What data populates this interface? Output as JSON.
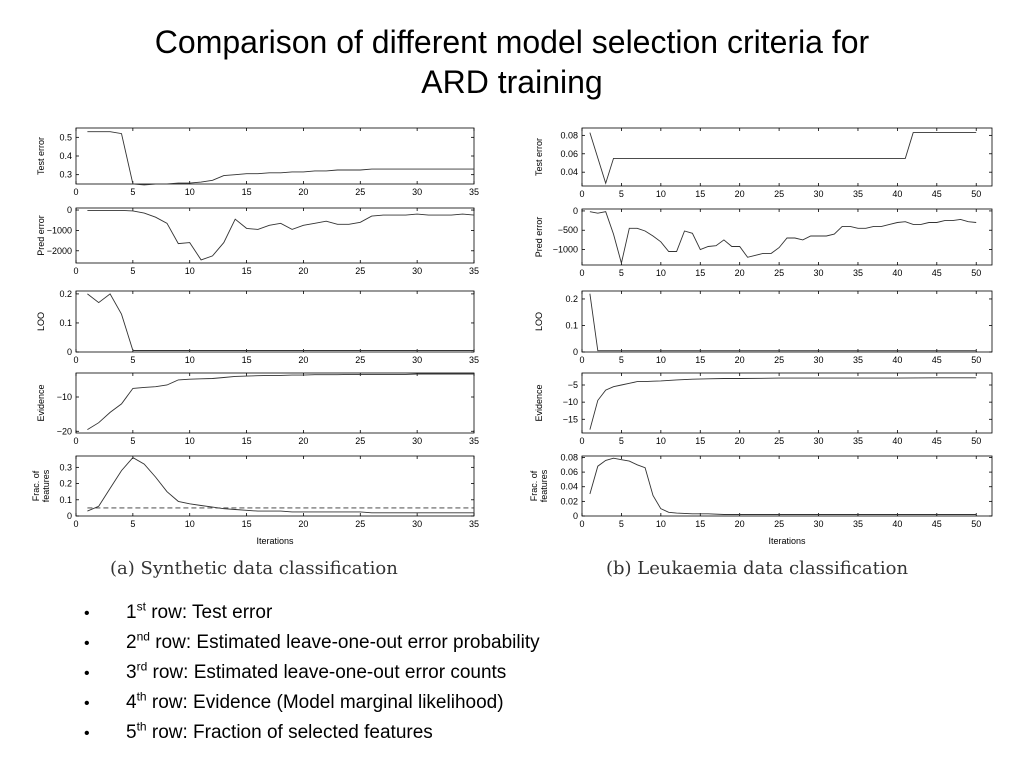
{
  "title": {
    "line1": "Comparison of different model selection criteria for",
    "line2": "ARD training"
  },
  "captions": {
    "a": "(a) Synthetic data classification",
    "b": "(b) Leukaemia data classification"
  },
  "bullets": [
    {
      "marker": "•",
      "num": "1",
      "sup": "st",
      "text": "row: Test error"
    },
    {
      "marker": "•",
      "num": "2",
      "sup": "nd",
      "text": "row: Estimated leave-one-out error probability"
    },
    {
      "marker": "•",
      "num": "3",
      "sup": "rd",
      "text": "row: Estimated leave-one-out error counts"
    },
    {
      "marker": "•",
      "num": "4",
      "sup": "th",
      "text": "row: Evidence (Model marginal likelihood)"
    },
    {
      "marker": "•",
      "num": "5",
      "sup": "th",
      "text": "row: Fraction of selected features"
    }
  ],
  "colors": {
    "line": "#333333",
    "axis": "#000000"
  },
  "chart_data": [
    {
      "type": "line",
      "panel": "a",
      "xlabel": "Iterations",
      "xlim": [
        0,
        35
      ],
      "xticks": [
        0,
        5,
        10,
        15,
        20,
        25,
        30,
        35
      ],
      "subplots": [
        {
          "ylabel": "Test error",
          "ylim": [
            0.25,
            0.55
          ],
          "yticks": [
            0.3,
            0.4,
            0.5
          ],
          "yticklabels": [
            "0.3",
            "0.4",
            "0.5"
          ],
          "series": [
            {
              "x": [
                1,
                2,
                3,
                4,
                5,
                6,
                7,
                8,
                9,
                10,
                11,
                12,
                13,
                14,
                15,
                16,
                17,
                18,
                19,
                20,
                21,
                22,
                23,
                24,
                25,
                26,
                27,
                28,
                29,
                30,
                31,
                32,
                33,
                34,
                35
              ],
              "y": [
                0.53,
                0.53,
                0.53,
                0.52,
                0.25,
                0.245,
                0.25,
                0.25,
                0.255,
                0.255,
                0.26,
                0.27,
                0.295,
                0.3,
                0.305,
                0.305,
                0.31,
                0.31,
                0.315,
                0.315,
                0.32,
                0.32,
                0.325,
                0.325,
                0.325,
                0.33,
                0.33,
                0.33,
                0.33,
                0.33,
                0.33,
                0.33,
                0.33,
                0.33,
                0.33
              ]
            }
          ]
        },
        {
          "ylabel": "Pred error",
          "ylim": [
            -2600,
            100
          ],
          "yticks": [
            0,
            -1000,
            -2000
          ],
          "yticklabels": [
            "0",
            "−1000",
            "−2000"
          ],
          "series": [
            {
              "x": [
                1,
                2,
                3,
                4,
                5,
                6,
                7,
                8,
                9,
                10,
                11,
                12,
                13,
                14,
                15,
                16,
                17,
                18,
                19,
                20,
                21,
                22,
                23,
                24,
                25,
                26,
                27,
                28,
                29,
                30,
                31,
                32,
                33,
                34,
                35
              ],
              "y": [
                -20,
                -20,
                -20,
                -20,
                -40,
                -150,
                -350,
                -650,
                -1650,
                -1600,
                -2450,
                -2250,
                -1600,
                -450,
                -900,
                -950,
                -750,
                -650,
                -950,
                -750,
                -650,
                -550,
                -700,
                -700,
                -600,
                -300,
                -250,
                -250,
                -250,
                -200,
                -250,
                -250,
                -250,
                -200,
                -250
              ]
            }
          ]
        },
        {
          "ylabel": "LOO",
          "ylim": [
            0,
            0.21
          ],
          "yticks": [
            0,
            0.1,
            0.2
          ],
          "yticklabels": [
            "0",
            "0.1",
            "0.2"
          ],
          "series": [
            {
              "x": [
                1,
                2,
                3,
                4,
                5,
                6,
                10,
                15,
                20,
                25,
                30,
                35
              ],
              "y": [
                0.2,
                0.17,
                0.2,
                0.13,
                0.005,
                0.005,
                0.005,
                0.005,
                0.005,
                0.005,
                0.005,
                0.005
              ]
            }
          ]
        },
        {
          "ylabel": "Evidence",
          "ylim": [
            -20.5,
            -3
          ],
          "yticks": [
            -10,
            -20
          ],
          "yticklabels": [
            "−10",
            "−20"
          ],
          "series": [
            {
              "x": [
                1,
                2,
                3,
                4,
                5,
                6,
                7,
                8,
                9,
                10,
                11,
                12,
                13,
                14,
                15,
                16,
                17,
                18,
                19,
                20,
                21,
                22,
                23,
                24,
                25,
                26,
                27,
                28,
                29,
                30,
                31,
                32,
                33,
                34,
                35
              ],
              "y": [
                -19.5,
                -17.5,
                -14.5,
                -12,
                -7.5,
                -7.2,
                -7,
                -6.5,
                -5,
                -4.8,
                -4.7,
                -4.6,
                -4.3,
                -4,
                -3.9,
                -3.8,
                -3.7,
                -3.7,
                -3.6,
                -3.6,
                -3.5,
                -3.5,
                -3.5,
                -3.4,
                -3.4,
                -3.4,
                -3.4,
                -3.4,
                -3.4,
                -3.3,
                -3.3,
                -3.3,
                -3.3,
                -3.3,
                -3.3
              ]
            }
          ]
        },
        {
          "ylabel": "Frac. of\nfeatures",
          "ylim": [
            0,
            0.37
          ],
          "yticks": [
            0,
            0.1,
            0.2,
            0.3
          ],
          "yticklabels": [
            "0",
            "0.1",
            "0.2",
            "0.3"
          ],
          "series": [
            {
              "x": [
                1,
                2,
                3,
                4,
                5,
                6,
                7,
                8,
                9,
                10,
                11,
                12,
                13,
                14,
                15,
                16,
                17,
                18,
                19,
                20,
                21,
                22,
                23,
                24,
                25,
                26,
                27,
                28,
                29,
                30,
                31,
                32,
                33,
                34,
                35
              ],
              "y": [
                0.03,
                0.06,
                0.17,
                0.28,
                0.36,
                0.32,
                0.24,
                0.15,
                0.09,
                0.075,
                0.065,
                0.055,
                0.045,
                0.04,
                0.035,
                0.03,
                0.03,
                0.03,
                0.025,
                0.025,
                0.025,
                0.025,
                0.025,
                0.025,
                0.025,
                0.02,
                0.02,
                0.02,
                0.02,
                0.02,
                0.02,
                0.02,
                0.02,
                0.02,
                0.02
              ]
            },
            {
              "x": [
                1,
                35
              ],
              "y": [
                0.05,
                0.05
              ],
              "dashed": true
            }
          ]
        }
      ]
    },
    {
      "type": "line",
      "panel": "b",
      "xlabel": "Iterations",
      "xlim": [
        0,
        52
      ],
      "xticks": [
        0,
        5,
        10,
        15,
        20,
        25,
        30,
        35,
        40,
        45,
        50
      ],
      "subplots": [
        {
          "ylabel": "Test error",
          "ylim": [
            0.025,
            0.088
          ],
          "yticks": [
            0.04,
            0.06,
            0.08
          ],
          "yticklabels": [
            "0.04",
            "0.06",
            "0.08"
          ],
          "series": [
            {
              "x": [
                1,
                3,
                4,
                41,
                42,
                50
              ],
              "y": [
                0.083,
                0.028,
                0.055,
                0.055,
                0.083,
                0.083
              ]
            }
          ]
        },
        {
          "ylabel": "Pred error",
          "ylim": [
            -1400,
            50
          ],
          "yticks": [
            0,
            -500,
            -1000
          ],
          "yticklabels": [
            "0",
            "−500",
            "−1000"
          ],
          "series": [
            {
              "x": [
                1,
                2,
                3,
                4,
                5,
                6,
                7,
                8,
                9,
                10,
                11,
                12,
                13,
                14,
                15,
                16,
                17,
                18,
                19,
                20,
                21,
                22,
                23,
                24,
                25,
                26,
                27,
                28,
                29,
                30,
                31,
                32,
                33,
                34,
                35,
                36,
                37,
                38,
                39,
                40,
                41,
                42,
                43,
                44,
                45,
                46,
                47,
                48,
                49,
                50
              ],
              "y": [
                -20,
                -60,
                -20,
                -600,
                -1350,
                -450,
                -450,
                -520,
                -650,
                -800,
                -1050,
                -1050,
                -520,
                -580,
                -1000,
                -920,
                -900,
                -750,
                -920,
                -920,
                -1200,
                -1150,
                -1100,
                -1100,
                -950,
                -700,
                -700,
                -750,
                -650,
                -650,
                -650,
                -600,
                -400,
                -400,
                -450,
                -450,
                -400,
                -400,
                -350,
                -300,
                -280,
                -350,
                -350,
                -300,
                -300,
                -250,
                -250,
                -220,
                -280,
                -300
              ]
            }
          ]
        },
        {
          "ylabel": "LOO",
          "ylim": [
            0,
            0.23
          ],
          "yticks": [
            0,
            0.1,
            0.2
          ],
          "yticklabels": [
            "0",
            "0.1",
            "0.2"
          ],
          "series": [
            {
              "x": [
                1,
                2,
                3,
                10,
                20,
                30,
                40,
                50
              ],
              "y": [
                0.22,
                0.005,
                0.005,
                0.005,
                0.005,
                0.005,
                0.005,
                0.005
              ]
            }
          ]
        },
        {
          "ylabel": "Evidence",
          "ylim": [
            -19,
            -1.5
          ],
          "yticks": [
            -5,
            -10,
            -15
          ],
          "yticklabels": [
            "−5",
            "−10",
            "−15"
          ],
          "series": [
            {
              "x": [
                1,
                2,
                3,
                4,
                5,
                6,
                7,
                8,
                9,
                10,
                12,
                14,
                16,
                18,
                20,
                25,
                30,
                35,
                40,
                45,
                50
              ],
              "y": [
                -18,
                -9.5,
                -6.5,
                -5.5,
                -5,
                -4.5,
                -4,
                -4,
                -3.9,
                -3.8,
                -3.5,
                -3.3,
                -3.2,
                -3.1,
                -3.1,
                -3,
                -3,
                -3,
                -3,
                -2.9,
                -2.9
              ]
            }
          ]
        },
        {
          "ylabel": "Frac. of\nfeatures",
          "ylim": [
            0,
            0.082
          ],
          "yticks": [
            0,
            0.02,
            0.04,
            0.06,
            0.08
          ],
          "yticklabels": [
            "0",
            "0.02",
            "0.04",
            "0.06",
            "0.08"
          ],
          "series": [
            {
              "x": [
                1,
                2,
                3,
                4,
                5,
                6,
                7,
                8,
                9,
                10,
                11,
                12,
                14,
                16,
                18,
                20,
                25,
                30,
                35,
                40,
                45,
                50
              ],
              "y": [
                0.03,
                0.068,
                0.076,
                0.079,
                0.077,
                0.075,
                0.07,
                0.066,
                0.028,
                0.01,
                0.005,
                0.004,
                0.003,
                0.003,
                0.002,
                0.002,
                0.002,
                0.002,
                0.002,
                0.002,
                0.002,
                0.002
              ]
            }
          ]
        }
      ]
    }
  ]
}
